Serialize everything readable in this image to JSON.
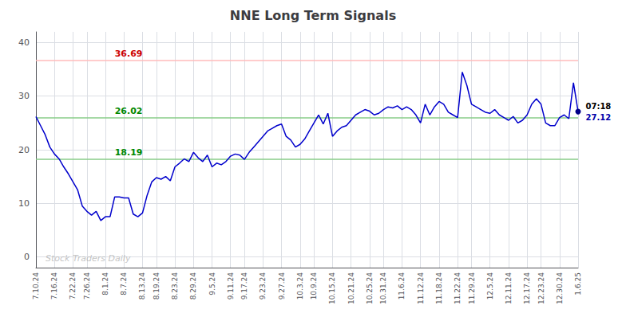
{
  "chart_data": {
    "type": "line",
    "title": "NNE Long Term Signals",
    "categories": [
      "7.10.24",
      null,
      null,
      null,
      "7.16.24",
      null,
      null,
      null,
      "7.22.24",
      null,
      null,
      "7.26.24",
      null,
      null,
      null,
      "8.1.24",
      null,
      null,
      null,
      "8.7.24",
      null,
      null,
      null,
      "8.13.24",
      null,
      null,
      "8.19.24",
      null,
      null,
      null,
      "8.23.24",
      null,
      null,
      null,
      "8.29.24",
      null,
      null,
      null,
      "9.5.24",
      null,
      null,
      null,
      "9.11.24",
      null,
      null,
      "9.17.24",
      null,
      null,
      null,
      "9.23.24",
      null,
      null,
      null,
      "9.27.24",
      null,
      null,
      null,
      "10.3.24",
      null,
      null,
      "10.9.24",
      null,
      null,
      null,
      "10.15.24",
      null,
      null,
      null,
      "10.21.24",
      null,
      null,
      null,
      "10.25.24",
      null,
      null,
      "10.31.24",
      null,
      null,
      null,
      "11.6.24",
      null,
      null,
      null,
      "11.12.24",
      null,
      null,
      null,
      "11.18.24",
      null,
      null,
      null,
      "11.22.24",
      null,
      null,
      "11.29.24",
      null,
      null,
      null,
      "12.5.24",
      null,
      null,
      null,
      "12.11.24",
      null,
      null,
      null,
      "12.17.24",
      null,
      null,
      "12.23.24",
      null,
      null,
      null,
      "12.30.24",
      null,
      null,
      null,
      "1.6.25"
    ],
    "values": [
      26.2,
      24.5,
      22.8,
      20.5,
      19.2,
      18.3,
      16.8,
      15.5,
      14.0,
      12.5,
      9.5,
      8.5,
      7.8,
      8.5,
      6.8,
      7.5,
      7.5,
      11.2,
      11.2,
      11.0,
      11.0,
      8.0,
      7.5,
      8.2,
      11.5,
      14.0,
      14.8,
      14.5,
      15.0,
      14.2,
      16.8,
      17.5,
      18.3,
      17.8,
      19.5,
      18.5,
      17.8,
      19.0,
      16.8,
      17.5,
      17.2,
      17.8,
      18.8,
      19.2,
      19.0,
      18.2,
      19.5,
      20.5,
      21.5,
      22.5,
      23.5,
      24.0,
      24.5,
      24.8,
      22.5,
      21.8,
      20.5,
      21.0,
      22.0,
      23.5,
      25.0,
      26.5,
      24.8,
      26.8,
      22.5,
      23.5,
      24.2,
      24.5,
      25.5,
      26.5,
      27.0,
      27.5,
      27.2,
      26.5,
      26.8,
      27.5,
      28.0,
      27.8,
      28.2,
      27.5,
      28.0,
      27.5,
      26.5,
      25.0,
      28.5,
      26.5,
      28.0,
      29.0,
      28.5,
      27.0,
      26.5,
      26.0,
      34.5,
      32.0,
      28.5,
      28.0,
      27.5,
      27.0,
      26.8,
      27.5,
      26.5,
      26.0,
      25.5,
      26.2,
      25.0,
      25.5,
      26.5,
      28.5,
      29.5,
      28.5,
      25.0,
      24.5,
      24.5,
      26.0,
      26.5,
      25.8,
      32.5,
      27.12
    ],
    "color": "#0000cc",
    "ylim": [
      -2,
      42
    ],
    "yticks": [
      0,
      10,
      20,
      30,
      40
    ],
    "grid": true,
    "hlines": [
      {
        "value": 36.69,
        "color": "#ffbbbb",
        "label_color": "#cc0000"
      },
      {
        "value": 26.02,
        "color": "#88cc88",
        "label_color": "#008800"
      },
      {
        "value": 18.19,
        "color": "#88cc88",
        "label_color": "#008800"
      }
    ],
    "last_point": {
      "value": 27.12,
      "color": "#000088"
    },
    "annotations": [
      {
        "text": "07:18",
        "color": "#000000"
      },
      {
        "text": "27.12",
        "color": "#0000aa"
      }
    ],
    "watermark": {
      "text": "Stock Traders Daily",
      "color": "#aaaaaa"
    }
  }
}
